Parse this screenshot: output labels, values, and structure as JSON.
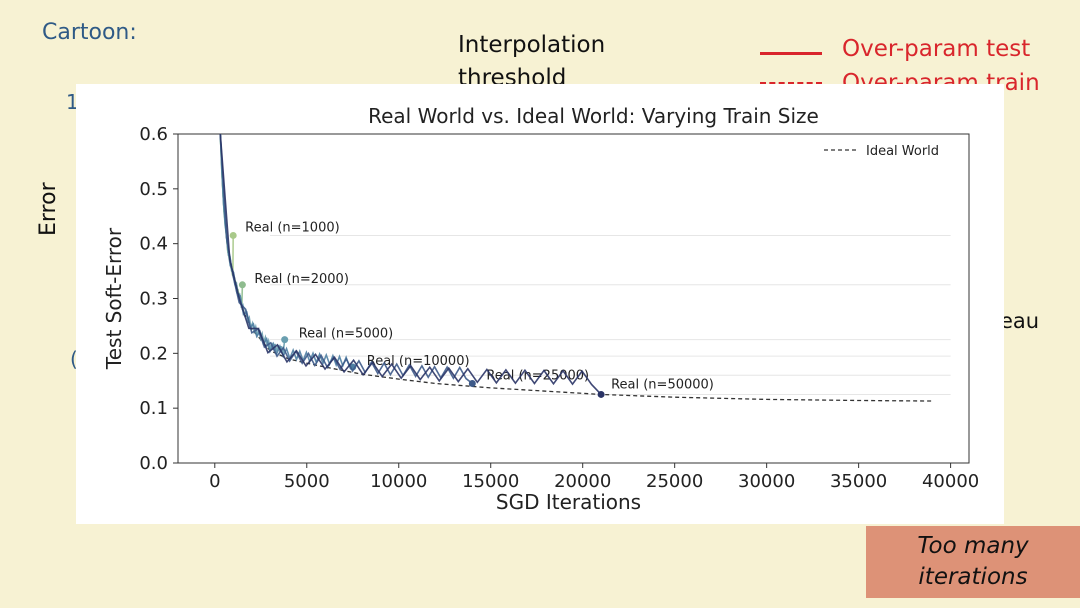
{
  "slide": {
    "cartoon_label": "Cartoon:",
    "fragment_one": "1",
    "fragment_c": "(",
    "interp_line1": "Interpolation",
    "interp_line2": "threshold",
    "back_ylabel": "Error",
    "fragment_eau": "eau",
    "legend": {
      "test": "Over-param test",
      "train": "Over-param train",
      "color": "#d9262c"
    },
    "callout_line1": "Too many",
    "callout_line2": "iterations",
    "callout_color": "#dd9277"
  },
  "chart_data": {
    "type": "line",
    "title": "Real World vs. Ideal World: Varying Train Size",
    "xlabel": "SGD Iterations",
    "ylabel": "Test Soft-Error",
    "xlim": [
      -2000,
      41000
    ],
    "ylim": [
      0.0,
      0.6
    ],
    "xticks": [
      0,
      5000,
      10000,
      15000,
      20000,
      25000,
      30000,
      35000,
      40000
    ],
    "yticks": [
      0.0,
      0.1,
      0.2,
      0.3,
      0.4,
      0.5,
      0.6
    ],
    "legend": {
      "position": "top-right",
      "entries": [
        "Ideal World"
      ]
    },
    "ideal_world": {
      "name": "Ideal World",
      "style": "dashed",
      "color": "#333333",
      "x": [
        300,
        400,
        500,
        700,
        1000,
        1500,
        2000,
        3000,
        4000,
        5000,
        6000,
        8000,
        10000,
        12000,
        15000,
        18000,
        21000,
        25000,
        30000,
        35000,
        39000
      ],
      "y": [
        0.6,
        0.52,
        0.46,
        0.39,
        0.34,
        0.28,
        0.245,
        0.205,
        0.19,
        0.182,
        0.175,
        0.162,
        0.153,
        0.145,
        0.137,
        0.131,
        0.125,
        0.12,
        0.116,
        0.114,
        0.113
      ]
    },
    "real_series": [
      {
        "name": "Real (n=1000)",
        "color": "#a9c98a",
        "end": [
          1000,
          0.415
        ]
      },
      {
        "name": "Real (n=2000)",
        "color": "#8fbc8f",
        "end": [
          1500,
          0.325
        ]
      },
      {
        "name": "Real (n=5000)",
        "color": "#6a9fb0",
        "end": [
          3800,
          0.225
        ]
      },
      {
        "name": "Real (n=10000)",
        "color": "#4f7fa3",
        "end": [
          7500,
          0.175
        ]
      },
      {
        "name": "Real (n=25000)",
        "color": "#3d5a89",
        "end": [
          14000,
          0.145
        ]
      },
      {
        "name": "Real (n=50000)",
        "color": "#2a3466",
        "end": [
          21000,
          0.125
        ]
      }
    ],
    "plateau_y": [
      0.415,
      0.325,
      0.225,
      0.195,
      0.16,
      0.125
    ]
  }
}
